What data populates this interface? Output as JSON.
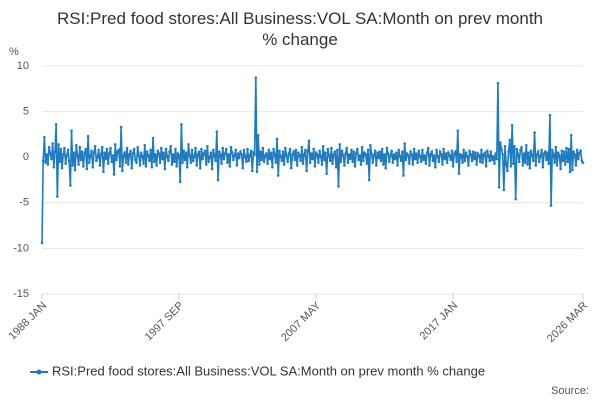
{
  "chart_data": {
    "type": "line",
    "title": "RSI:Pred food stores:All Business:VOL SA:Month on prev month % change",
    "y_label": "%",
    "source": "Source:",
    "ylim": [
      -15,
      10
    ],
    "yticks": [
      10,
      5,
      0,
      -5,
      -10,
      -15
    ],
    "grid": true,
    "legend": "bottom",
    "categories": [
      "1988 JAN",
      null,
      null,
      null,
      null,
      null,
      null,
      null,
      null,
      null,
      null,
      null,
      null,
      null,
      null,
      null,
      null,
      null,
      null,
      null,
      null,
      null,
      null,
      null,
      null,
      null,
      null,
      null,
      null,
      null,
      null,
      null,
      null,
      null,
      null,
      null,
      null,
      null,
      null,
      null,
      null,
      null,
      null,
      null,
      null,
      null,
      null,
      null,
      null,
      null,
      null,
      null,
      null,
      null,
      null,
      null,
      null,
      null,
      null,
      null,
      null,
      null,
      null,
      null,
      null,
      null,
      null,
      null,
      null,
      null,
      null,
      null,
      null,
      null,
      null,
      null,
      null,
      null,
      null,
      null,
      null,
      null,
      null,
      null,
      null,
      null,
      null,
      null,
      null,
      null,
      null,
      null,
      null,
      null,
      null,
      null,
      null,
      null,
      null,
      null,
      null,
      null,
      null,
      null,
      null,
      null,
      null,
      null,
      null,
      null,
      null,
      null,
      null,
      null,
      null,
      null,
      "1997 SEP",
      null,
      null,
      null,
      null,
      null,
      null,
      null,
      null,
      null,
      null,
      null,
      null,
      null,
      null,
      null,
      null,
      null,
      null,
      null,
      null,
      null,
      null,
      null,
      null,
      null,
      null,
      null,
      null,
      null,
      null,
      null,
      null,
      null,
      null,
      null,
      null,
      null,
      null,
      null,
      null,
      null,
      null,
      null,
      null,
      null,
      null,
      null,
      null,
      null,
      null,
      null,
      null,
      null,
      null,
      null,
      null,
      null,
      null,
      null,
      null,
      null,
      null,
      null,
      null,
      null,
      null,
      null,
      null,
      null,
      null,
      null,
      null,
      null,
      null,
      null,
      null,
      null,
      null,
      null,
      null,
      null,
      null,
      null,
      null,
      null,
      null,
      null,
      null,
      null,
      null,
      null,
      null,
      null,
      null,
      null,
      null,
      null,
      null,
      null,
      null,
      null,
      null,
      null,
      null,
      null,
      null,
      null,
      null,
      null,
      null,
      null,
      null,
      null,
      null,
      null,
      "2007 MAY",
      null,
      null,
      null,
      null,
      null,
      null,
      null,
      null,
      null,
      null,
      null,
      null,
      null,
      null,
      null,
      null,
      null,
      null,
      null,
      null,
      null,
      null,
      null,
      null,
      null,
      null,
      null,
      null,
      null,
      null,
      null,
      null,
      null,
      null,
      null,
      null,
      null,
      null,
      null,
      null,
      null,
      null,
      null,
      null,
      null,
      null,
      null,
      null,
      null,
      null,
      null,
      null,
      null,
      null,
      null,
      null,
      null,
      null,
      null,
      null,
      null,
      null,
      null,
      null,
      null,
      null,
      null,
      null,
      null,
      null,
      null,
      null,
      null,
      null,
      null,
      null,
      null,
      null,
      null,
      null,
      null,
      null,
      null,
      null,
      null,
      null,
      null,
      null,
      null,
      null,
      null,
      null,
      null,
      null,
      null,
      null,
      null,
      null,
      null,
      null,
      null,
      null,
      null,
      null,
      null,
      null,
      null,
      null,
      null,
      null,
      null,
      null,
      null,
      null,
      null,
      "2017 JAN",
      null,
      null,
      null,
      null,
      null,
      null,
      null,
      null,
      null,
      null,
      null,
      null,
      null,
      null,
      null,
      null,
      null,
      null,
      null,
      null,
      null,
      null,
      null,
      null,
      null,
      null,
      null,
      null,
      null,
      null,
      null,
      null,
      null,
      null,
      null,
      null,
      null,
      null,
      null,
      null,
      null,
      null,
      null,
      null,
      null,
      null,
      null,
      null,
      null,
      null,
      null,
      null,
      null,
      null,
      null,
      null,
      null,
      null,
      null,
      null,
      null,
      null,
      null,
      null,
      null,
      null,
      null,
      null,
      null,
      null,
      null,
      null,
      null,
      null,
      null,
      null,
      null,
      null,
      null,
      null,
      null,
      null,
      null,
      null,
      null,
      null,
      null,
      null,
      null,
      null,
      null,
      null,
      null,
      null,
      null,
      null,
      null,
      null,
      null,
      null,
      null,
      null,
      null,
      null,
      null,
      null,
      null,
      null,
      null,
      "2026 MAR"
    ],
    "series": [
      {
        "name": "RSI:Pred food stores:All Business:VOL SA:Month on prev month % change",
        "color": "#1f7bbf",
        "values": [
          -9.4,
          -0.4,
          2.2,
          -0.6,
          0.3,
          -0.8,
          1.1,
          0.4,
          -0.2,
          1.5,
          -1.1,
          0.6,
          3.6,
          -4.3,
          1.4,
          -0.5,
          0.9,
          -1.2,
          0.3,
          1.0,
          -0.7,
          0.2,
          0.8,
          -0.4,
          -3.1,
          2.9,
          -0.9,
          0.5,
          -1.4,
          1.3,
          0.2,
          -0.8,
          1.1,
          -0.3,
          0.6,
          -1.0,
          0.4,
          0.9,
          -1.3,
          2.3,
          -0.6,
          0.1,
          0.7,
          -1.1,
          0.5,
          1.2,
          -0.4,
          0.0,
          0.8,
          -0.9,
          0.3,
          1.1,
          -1.6,
          0.5,
          -0.2,
          0.9,
          -0.7,
          0.4,
          1.0,
          -0.5,
          0.2,
          -1.9,
          1.4,
          -0.3,
          0.6,
          0.8,
          -1.0,
          3.3,
          -1.5,
          0.2,
          0.5,
          -0.6,
          1.0,
          -0.8,
          0.3,
          0.7,
          -1.2,
          0.4,
          0.9,
          -0.3,
          -0.6,
          1.1,
          0.2,
          -0.9,
          0.5,
          0.1,
          -0.7,
          1.3,
          -1.0,
          0.6,
          0.2,
          -0.4,
          0.8,
          -1.1,
          2.1,
          -0.5,
          0.3,
          -0.9,
          0.7,
          0.4,
          -0.6,
          1.0,
          -0.2,
          0.5,
          -1.3,
          0.9,
          0.1,
          -0.4,
          0.6,
          1.2,
          -0.8,
          0.3,
          -0.5,
          0.9,
          -1.0,
          0.4,
          0.2,
          -2.7,
          3.6,
          -0.6,
          0.7,
          -0.3,
          0.5,
          -1.1,
          1.4,
          0.2,
          -0.6,
          0.8,
          -0.4,
          0.1,
          1.0,
          -0.9,
          0.3,
          0.6,
          -1.2,
          0.9,
          -0.2,
          0.4,
          0.7,
          -0.8,
          1.2,
          -0.5,
          0.0,
          0.5,
          -1.3,
          0.8,
          0.2,
          -0.4,
          2.8,
          -2.5,
          0.6,
          0.3,
          -0.7,
          1.0,
          -0.2,
          0.4,
          0.9,
          -0.6,
          0.3,
          -1.0,
          1.1,
          0.5,
          -0.3,
          0.2,
          0.8,
          -0.9,
          0.4,
          -0.1,
          0.6,
          0.3,
          -1.2,
          0.8,
          0.1,
          -0.5,
          0.9,
          -0.4,
          0.2,
          0.7,
          -1.5,
          0.5,
          0.3,
          8.7,
          -1.6,
          2.4,
          -0.8,
          0.6,
          -0.3,
          1.0,
          -0.5,
          0.2,
          0.4,
          -0.7,
          0.8,
          -0.2,
          0.5,
          -1.1,
          0.9,
          0.3,
          -0.6,
          2.0,
          -2.0,
          0.7,
          0.1,
          -0.4,
          0.6,
          -0.8,
          1.0,
          0.2,
          -0.5,
          0.4,
          0.9,
          -1.2,
          0.3,
          0.6,
          -0.3,
          0.8,
          -0.9,
          0.5,
          0.2,
          -0.4,
          1.1,
          -0.7,
          0.3,
          0.8,
          -1.5,
          0.6,
          1.8,
          -0.6,
          0.4,
          -0.2,
          0.9,
          -1.0,
          0.5,
          0.3,
          -0.6,
          0.7,
          0.1,
          -0.8,
          1.2,
          -0.3,
          0.5,
          -1.8,
          0.9,
          0.2,
          -0.4,
          1.0,
          -0.7,
          0.3,
          0.6,
          -1.1,
          0.8,
          -3.2,
          1.4,
          -0.5,
          0.7,
          0.2,
          -0.9,
          0.4,
          1.0,
          -0.6,
          0.3,
          -0.2,
          0.8,
          -0.5,
          0.6,
          -1.0,
          0.4,
          0.9,
          -0.3,
          0.2,
          -0.8,
          1.1,
          -0.4,
          0.5,
          0.3,
          -0.7,
          0.8,
          -2.5,
          1.3,
          0.4,
          -0.6,
          0.2,
          0.7,
          -0.9,
          0.5,
          -0.1,
          0.6,
          -0.4,
          0.9,
          -0.8,
          0.3,
          -1.2,
          1.0,
          0.4,
          -0.5,
          0.2,
          0.7,
          -0.6,
          0.3,
          -0.2,
          0.5,
          -0.9,
          0.8,
          0.1,
          -0.4,
          0.6,
          -2.0,
          1.5,
          -0.3,
          0.4,
          0.2,
          -0.7,
          0.6,
          0.3,
          -0.8,
          0.9,
          -0.2,
          0.4,
          -0.6,
          0.7,
          0.1,
          -0.5,
          0.8,
          -0.3,
          0.2,
          -0.7,
          0.5,
          1.0,
          -0.9,
          0.3,
          0.6,
          -0.4,
          0.2,
          -1.1,
          0.8,
          0.1,
          -0.5,
          0.6,
          0.3,
          -0.8,
          0.9,
          -0.2,
          0.4,
          -0.6,
          0.5,
          0.2,
          -0.3,
          0.7,
          -1.0,
          0.4,
          0.6,
          -0.5,
          2.9,
          -1.8,
          0.3,
          0.2,
          -0.6,
          0.8,
          -0.4,
          0.5,
          0.1,
          -0.9,
          0.7,
          0.3,
          -0.4,
          0.6,
          -0.2,
          0.5,
          -0.8,
          0.4,
          0.2,
          -0.5,
          0.8,
          -0.6,
          0.3,
          0.5,
          -1.0,
          0.7,
          0.2,
          -0.4,
          0.6,
          -0.3,
          0.1,
          -0.7,
          0.4,
          -0.2,
          8.1,
          -3.3,
          1.6,
          0.9,
          0.3,
          -3.6,
          1.2,
          -0.8,
          -1.5,
          0.6,
          1.9,
          -1.0,
          3.5,
          -0.7,
          1.2,
          -4.6,
          0.9,
          0.3,
          -0.5,
          0.8,
          1.1,
          -0.9,
          0.4,
          -0.6,
          1.3,
          -0.8,
          0.5,
          -1.2,
          0.7,
          0.2,
          -0.4,
          2.7,
          -0.9,
          0.3,
          0.6,
          -0.5,
          0.2,
          0.8,
          -1.1,
          0.4,
          0.6,
          -0.3,
          0.5,
          -0.7,
          4.6,
          -5.3,
          0.8,
          0.3,
          -0.6,
          1.1,
          -0.9,
          0.5,
          0.2,
          -1.3,
          0.7,
          -0.4,
          0.6,
          -0.8,
          1.0,
          -0.5,
          0.9,
          -1.6,
          2.4,
          -1.4,
          0.6,
          0.3,
          -0.9,
          0.8,
          -0.2,
          0.5,
          0.7,
          -0.4,
          -0.6
        ]
      }
    ]
  }
}
